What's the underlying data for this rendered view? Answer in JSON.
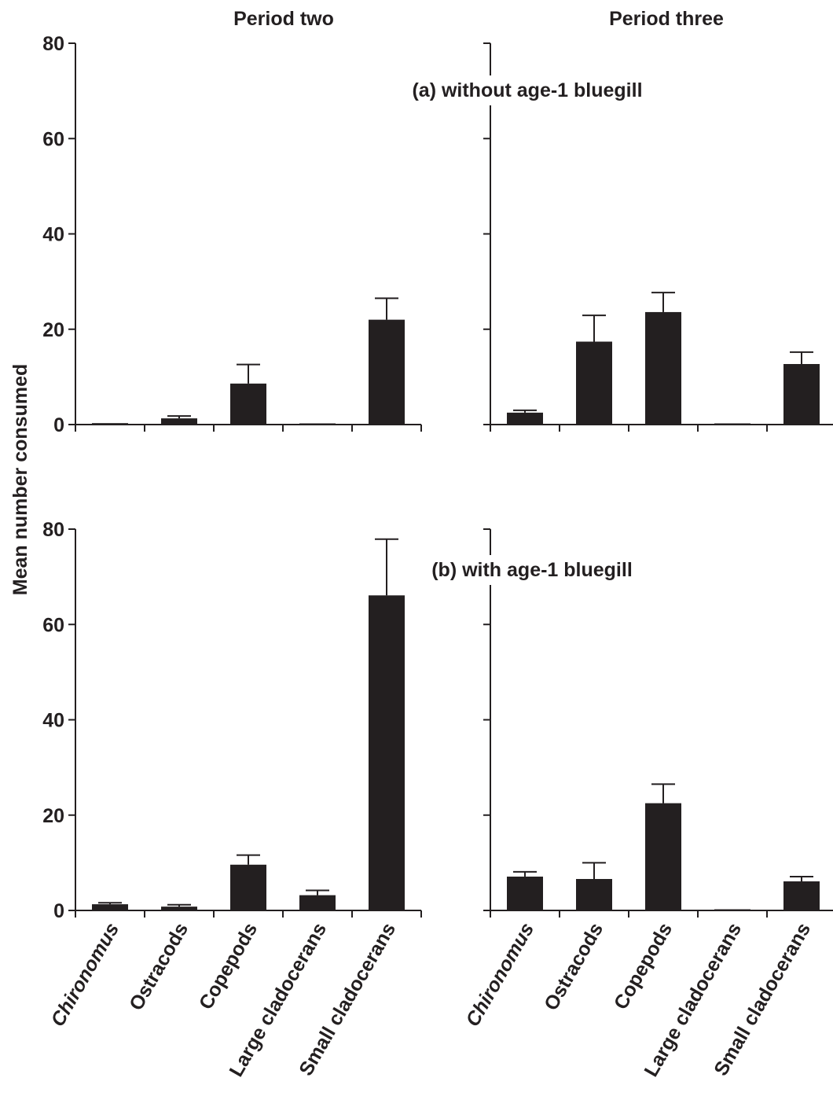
{
  "columns": [
    "Period two",
    "Period three"
  ],
  "ylabel": "Mean number consumed",
  "panels": [
    {
      "label": "(a) without age-1 bluegill"
    },
    {
      "label": "(b) with age-1 bluegill"
    }
  ],
  "bar_color": "#231f20",
  "chart_data": [
    {
      "type": "bar",
      "title": "Period two",
      "subtitle": "(a) without age-1 bluegill",
      "ylabel": "Mean number consumed",
      "ylim": [
        0,
        80
      ],
      "yticks": [
        0,
        20,
        40,
        60,
        80
      ],
      "categories": [
        "Chironomus",
        "Ostracods",
        "Copepods",
        "Large cladocerans",
        "Small cladocerans"
      ],
      "values": [
        0.3,
        1.3,
        8.6,
        0.2,
        22.0
      ],
      "errors": [
        0,
        0.5,
        4.0,
        0,
        4.5
      ]
    },
    {
      "type": "bar",
      "title": "Period three",
      "subtitle": "(a) without age-1 bluegill",
      "ylabel": "Mean number consumed",
      "ylim": [
        0,
        80
      ],
      "yticks": [
        0,
        20,
        40,
        60,
        80
      ],
      "categories": [
        "Chironomus",
        "Ostracods",
        "Copepods",
        "Large cladocerans",
        "Small cladocerans"
      ],
      "values": [
        2.5,
        17.4,
        23.6,
        0.1,
        12.7
      ],
      "errors": [
        0.5,
        5.5,
        4.1,
        0,
        2.5
      ]
    },
    {
      "type": "bar",
      "title": "Period two",
      "subtitle": "(b) with age-1 bluegill",
      "ylabel": "Mean number consumed",
      "ylim": [
        0,
        80
      ],
      "yticks": [
        0,
        20,
        40,
        60,
        80
      ],
      "categories": [
        "Chironomus",
        "Ostracods",
        "Copepods",
        "Large cladocerans",
        "Small cladocerans"
      ],
      "values": [
        1.3,
        0.8,
        9.6,
        3.2,
        66.1
      ],
      "errors": [
        0.3,
        0.4,
        2.0,
        1.0,
        11.8
      ]
    },
    {
      "type": "bar",
      "title": "Period three",
      "subtitle": "(b) with age-1 bluegill",
      "ylabel": "Mean number consumed",
      "ylim": [
        0,
        80
      ],
      "yticks": [
        0,
        20,
        40,
        60,
        80
      ],
      "categories": [
        "Chironomus",
        "Ostracods",
        "Copepods",
        "Large cladocerans",
        "Small cladocerans"
      ],
      "values": [
        7.1,
        6.6,
        22.5,
        0.2,
        6.1
      ],
      "errors": [
        1.0,
        3.4,
        4.0,
        0,
        1.0
      ]
    }
  ]
}
